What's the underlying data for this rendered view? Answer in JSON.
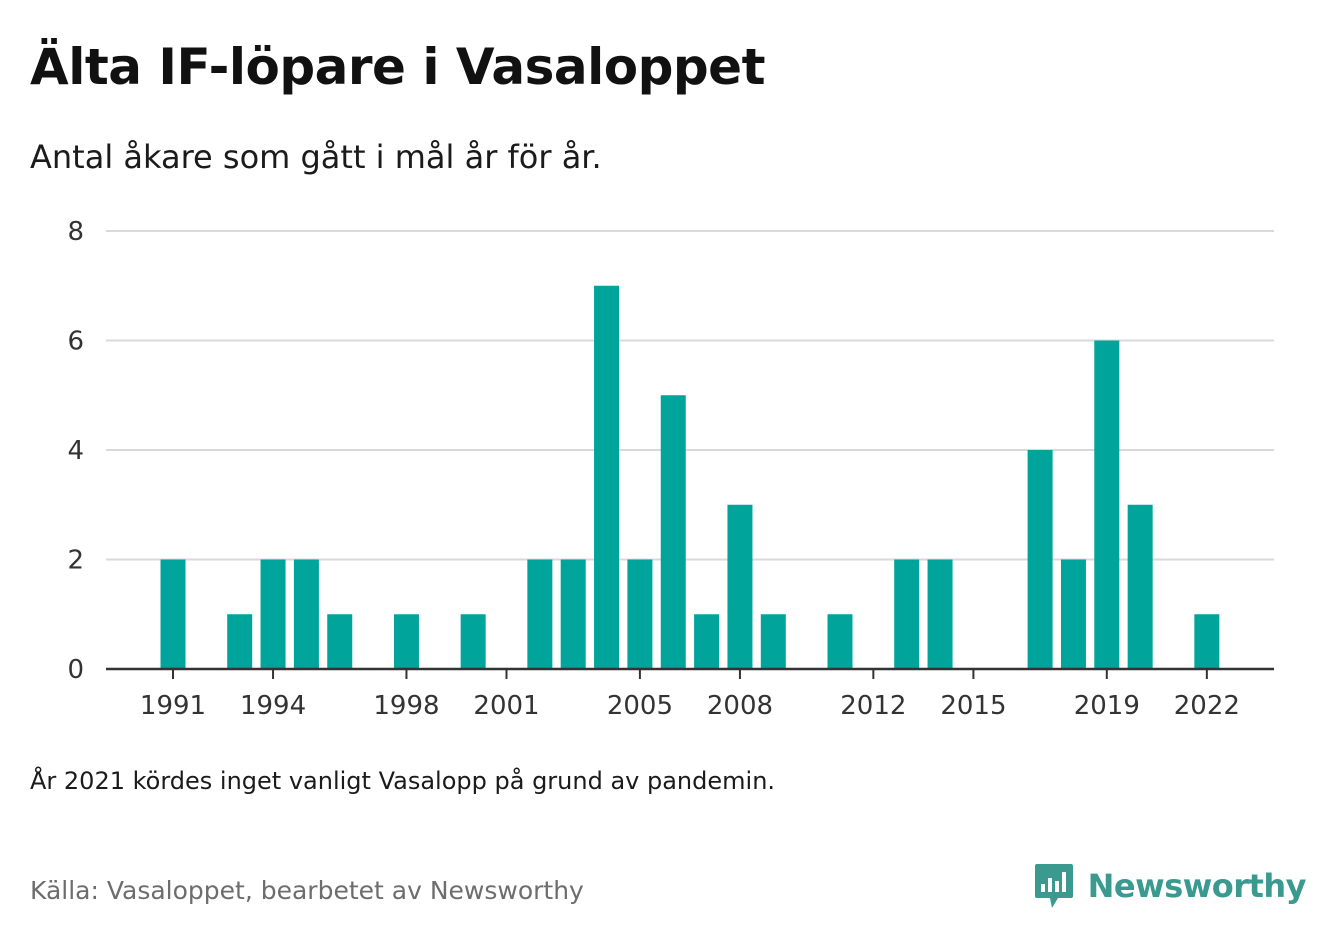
{
  "title": "Älta IF-löpare i Vasaloppet",
  "subtitle": "Antal åkare som gått i mål år för år.",
  "note": "År 2021 kördes inget vanligt Vasalopp på grund av pandemin.",
  "source": "Källa: Vasaloppet, bearbetet av Newsworthy",
  "brand": {
    "name": "Newsworthy",
    "icon": "newsworthy-logo-icon",
    "color": "#3a9a8f"
  },
  "colors": {
    "bar": "#00a49b",
    "grid": "#d9d9d9",
    "axis": "#333333"
  },
  "chart_data": {
    "type": "bar",
    "x": [
      1991,
      1992,
      1993,
      1994,
      1995,
      1996,
      1997,
      1998,
      1999,
      2000,
      2001,
      2002,
      2003,
      2004,
      2005,
      2006,
      2007,
      2008,
      2009,
      2010,
      2011,
      2012,
      2013,
      2014,
      2015,
      2016,
      2017,
      2018,
      2019,
      2020,
      2021,
      2022
    ],
    "values": [
      2,
      0,
      1,
      2,
      2,
      1,
      0,
      1,
      0,
      1,
      0,
      2,
      2,
      7,
      2,
      5,
      1,
      3,
      1,
      0,
      1,
      0,
      2,
      2,
      0,
      0,
      4,
      2,
      6,
      3,
      0,
      1
    ],
    "x_tick_labels": [
      "1991",
      "1994",
      "1998",
      "2001",
      "2005",
      "2008",
      "2012",
      "2015",
      "2019",
      "2022"
    ],
    "y_ticks": [
      0,
      2,
      4,
      6,
      8
    ],
    "ylim": [
      0,
      8
    ],
    "grid": true,
    "legend": "none"
  }
}
